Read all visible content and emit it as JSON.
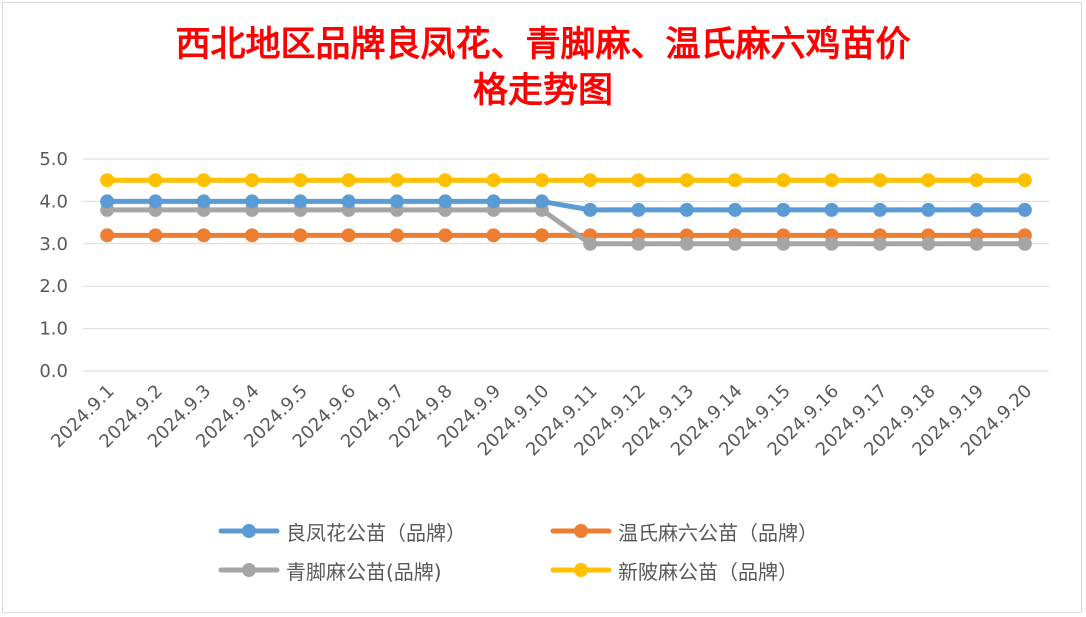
{
  "chart_data": {
    "type": "line",
    "title": "西北地区品牌良凤花、青脚麻、温氏麻六鸡苗价格走势图",
    "title_lines": [
      "西北地区品牌良凤花、青脚麻、温氏麻六鸡苗价",
      "格走势图"
    ],
    "categories": [
      "2024.9.1",
      "2024.9.2",
      "2024.9.3",
      "2024.9.4",
      "2024.9.5",
      "2024.9.6",
      "2024.9.7",
      "2024.9.8",
      "2024.9.9",
      "2024.9.10",
      "2024.9.11",
      "2024.9.12",
      "2024.9.13",
      "2024.9.14",
      "2024.9.15",
      "2024.9.16",
      "2024.9.17",
      "2024.9.18",
      "2024.9.19",
      "2024.9.20"
    ],
    "ylim": [
      0,
      5
    ],
    "yticks": [
      "0.0",
      "1.0",
      "2.0",
      "3.0",
      "4.0",
      "5.0"
    ],
    "grid": true,
    "legend_position": "bottom",
    "series": [
      {
        "name": "良凤花公苗（品牌）",
        "color": "#5b9bd5",
        "values": [
          4.0,
          4.0,
          4.0,
          4.0,
          4.0,
          4.0,
          4.0,
          4.0,
          4.0,
          4.0,
          3.8,
          3.8,
          3.8,
          3.8,
          3.8,
          3.8,
          3.8,
          3.8,
          3.8,
          3.8
        ]
      },
      {
        "name": "温氏麻六公苗（品牌）",
        "color": "#ed7d31",
        "values": [
          3.2,
          3.2,
          3.2,
          3.2,
          3.2,
          3.2,
          3.2,
          3.2,
          3.2,
          3.2,
          3.2,
          3.2,
          3.2,
          3.2,
          3.2,
          3.2,
          3.2,
          3.2,
          3.2,
          3.2
        ]
      },
      {
        "name": "青脚麻公苗(品牌)",
        "color": "#a5a5a5",
        "values": [
          3.8,
          3.8,
          3.8,
          3.8,
          3.8,
          3.8,
          3.8,
          3.8,
          3.8,
          3.8,
          3.0,
          3.0,
          3.0,
          3.0,
          3.0,
          3.0,
          3.0,
          3.0,
          3.0,
          3.0
        ]
      },
      {
        "name": "新陂麻公苗（品牌）",
        "color": "#ffc000",
        "values": [
          4.5,
          4.5,
          4.5,
          4.5,
          4.5,
          4.5,
          4.5,
          4.5,
          4.5,
          4.5,
          4.5,
          4.5,
          4.5,
          4.5,
          4.5,
          4.5,
          4.5,
          4.5,
          4.5,
          4.5
        ]
      }
    ],
    "draw_order": [
      1,
      2,
      0,
      3
    ],
    "legend_order": [
      0,
      1,
      2,
      3
    ]
  }
}
